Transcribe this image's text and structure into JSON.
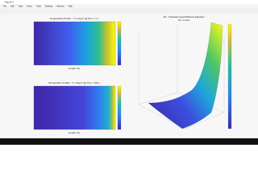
{
  "window": {
    "title": "Figure 1",
    "menu": [
      "File",
      "Edit",
      "View",
      "Insert",
      "Tools",
      "Desktop",
      "Window",
      "Help"
    ]
  },
  "plots": [
    {
      "title": "Temperature Profile - T in deg C @ time = 1 s",
      "xlabel": "Length (m)"
    },
    {
      "title": "Temperature Profile - T in deg C @ time = 100 s",
      "xlabel": "Length (m)"
    },
    {
      "title": "1D - Unsteady Heat Diffusion Equation",
      "subtitle": "Ut = a Uxx"
    }
  ]
}
